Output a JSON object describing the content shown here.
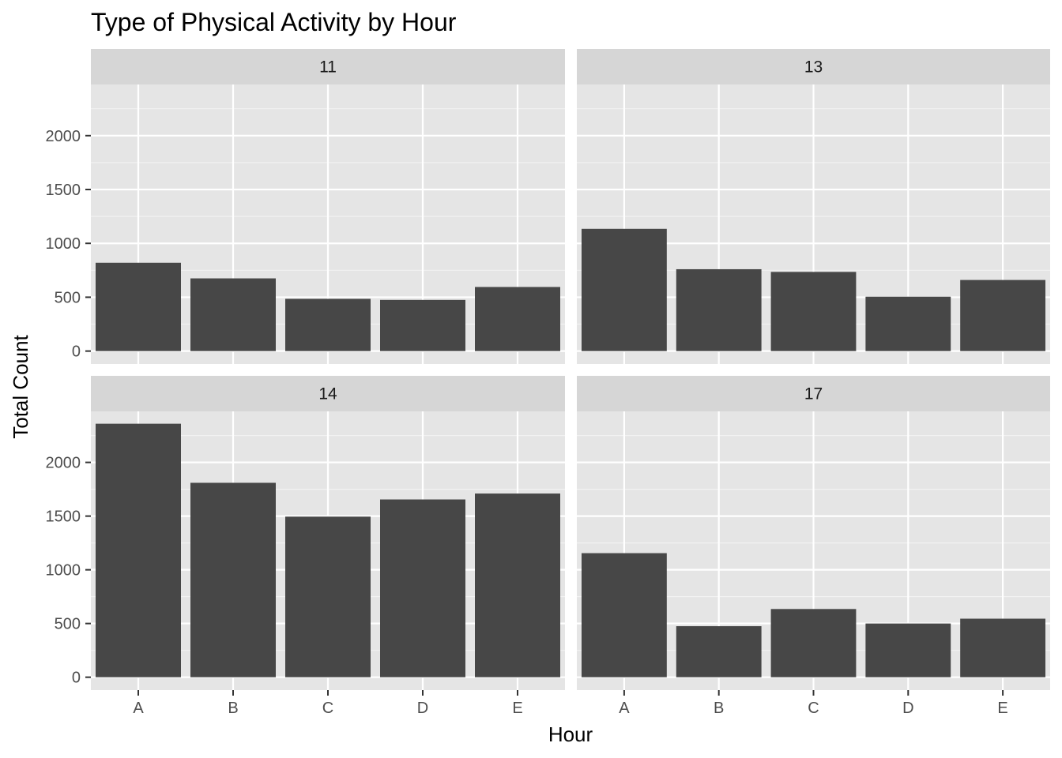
{
  "chart_data": {
    "type": "bar",
    "title": "Type of Physical Activity by Hour",
    "xlabel": "Hour",
    "ylabel": "Total Count",
    "categories": [
      "A",
      "B",
      "C",
      "D",
      "E"
    ],
    "y_ticks": [
      0,
      500,
      1000,
      1500,
      2000
    ],
    "y_tick_labels": [
      "0",
      "500",
      "1000",
      "1500",
      "2000"
    ],
    "ylim": [
      -120,
      2475
    ],
    "grid": true,
    "facets": [
      {
        "label": "11",
        "values": [
          820,
          675,
          485,
          475,
          595
        ]
      },
      {
        "label": "13",
        "values": [
          1135,
          760,
          735,
          505,
          660
        ]
      },
      {
        "label": "14",
        "values": [
          2360,
          1810,
          1495,
          1655,
          1710
        ]
      },
      {
        "label": "17",
        "values": [
          1155,
          475,
          635,
          500,
          545
        ]
      }
    ],
    "colors": {
      "bar": "#474747",
      "panel_background": "#e5e5e5",
      "strip_background": "#d6d6d6",
      "grid_major": "#ffffff",
      "grid_minor": "#f2f2f2",
      "tick": "#333333"
    }
  }
}
